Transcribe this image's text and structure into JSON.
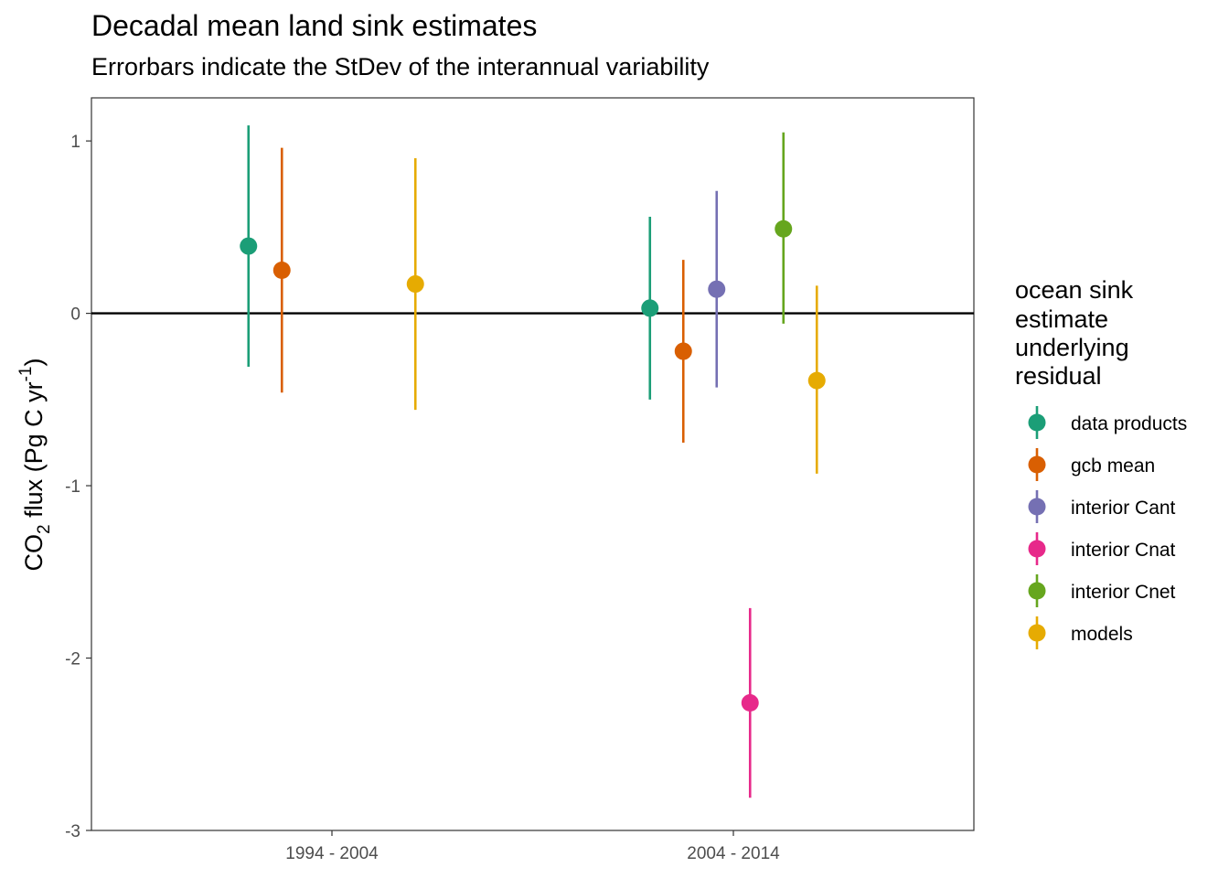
{
  "chart_data": {
    "type": "scatter",
    "title": "Decadal mean land sink estimates",
    "subtitle": "Errorbars indicate the StDev of the interannual variability",
    "ylabel_parts": {
      "prefix": "CO",
      "sub": "2",
      "mid": " flux (Pg C yr",
      "sup": "-1",
      "suffix": ")"
    },
    "xlabel": "",
    "categories": [
      "1994 - 2004",
      "2004 - 2014"
    ],
    "ylim": [
      -3,
      1.25
    ],
    "yticks": [
      1,
      0,
      -1,
      -2,
      -3
    ],
    "ytick_labels": [
      "1",
      "0",
      "-1",
      "-2",
      "-3"
    ],
    "hline": 0,
    "legend": {
      "title_lines": [
        "ocean sink",
        "estimate",
        "underlying",
        "residual"
      ],
      "position": "right"
    },
    "series": [
      {
        "name": "data products",
        "color": "#1b9e77",
        "points": [
          {
            "category": "1994 - 2004",
            "y": 0.39,
            "low": -0.31,
            "high": 1.09
          },
          {
            "category": "2004 - 2014",
            "y": 0.03,
            "low": -0.5,
            "high": 0.56
          }
        ]
      },
      {
        "name": "gcb mean",
        "color": "#d95f02",
        "points": [
          {
            "category": "1994 - 2004",
            "y": 0.25,
            "low": -0.46,
            "high": 0.96
          },
          {
            "category": "2004 - 2014",
            "y": -0.22,
            "low": -0.75,
            "high": 0.31
          }
        ]
      },
      {
        "name": "interior Cant",
        "color": "#7570b3",
        "points": [
          {
            "category": "2004 - 2014",
            "y": 0.14,
            "low": -0.43,
            "high": 0.71
          }
        ]
      },
      {
        "name": "interior Cnat",
        "color": "#e7298a",
        "points": [
          {
            "category": "2004 - 2014",
            "y": -2.26,
            "low": -2.81,
            "high": -1.71
          }
        ]
      },
      {
        "name": "interior Cnet",
        "color": "#66a61e",
        "points": [
          {
            "category": "2004 - 2014",
            "y": 0.49,
            "low": -0.06,
            "high": 1.05
          }
        ]
      },
      {
        "name": "models",
        "color": "#e6ab02",
        "points": [
          {
            "category": "1994 - 2004",
            "y": 0.17,
            "low": -0.56,
            "high": 0.9
          },
          {
            "category": "2004 - 2014",
            "y": -0.39,
            "low": -0.93,
            "high": 0.16
          }
        ]
      }
    ]
  }
}
